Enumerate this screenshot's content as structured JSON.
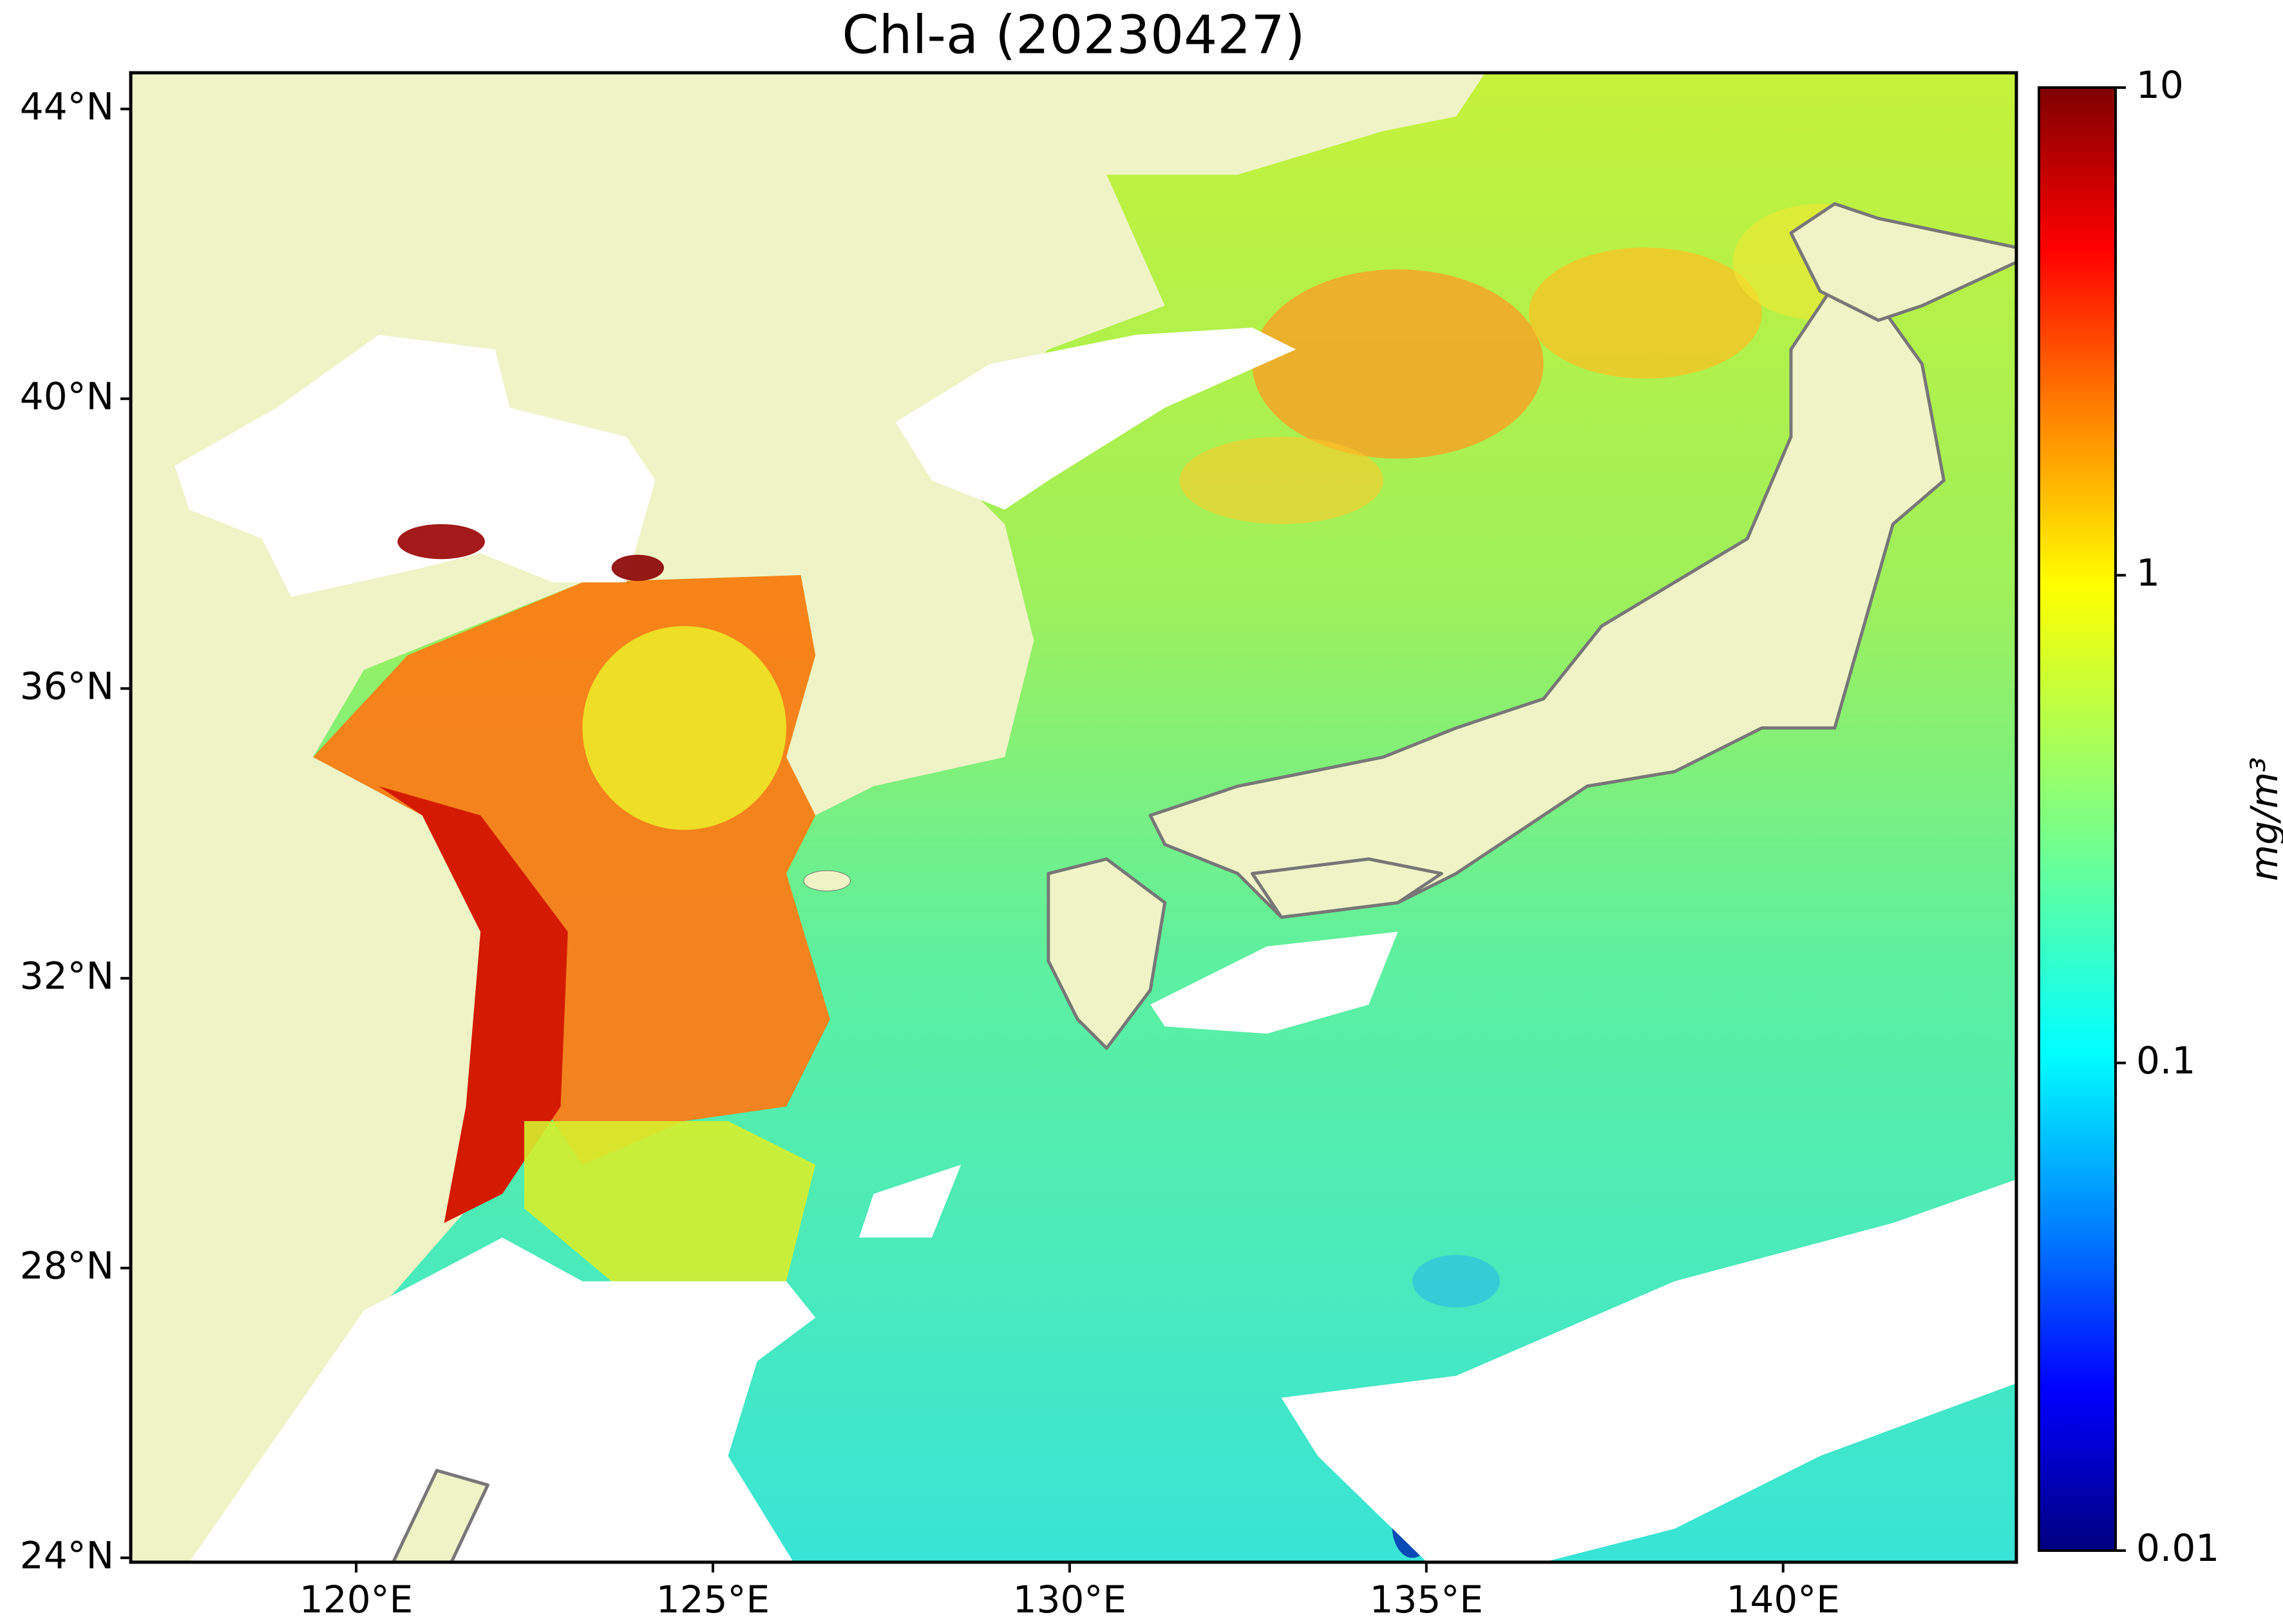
{
  "map": {
    "title": "Chl-a (20230427)",
    "xlim": [
      116.84,
      143.27
    ],
    "ylim": [
      23.94,
      44.5
    ],
    "xticks": [
      {
        "value": 120,
        "label": "120°E"
      },
      {
        "value": 125,
        "label": "125°E"
      },
      {
        "value": 130,
        "label": "130°E"
      },
      {
        "value": 135,
        "label": "135°E"
      },
      {
        "value": 140,
        "label": "140°E"
      }
    ],
    "yticks": [
      {
        "value": 24,
        "label": "24°N"
      },
      {
        "value": 28,
        "label": "28°N"
      },
      {
        "value": 32,
        "label": "32°N"
      },
      {
        "value": 36,
        "label": "36°N"
      },
      {
        "value": 40,
        "label": "40°N"
      },
      {
        "value": 44,
        "label": "44°N"
      }
    ],
    "colorbar": {
      "label": "mg/m³",
      "lim": [
        0.01,
        10
      ],
      "log": true,
      "ticks": [
        0.01,
        0.1,
        1,
        10
      ]
    }
  }
}
